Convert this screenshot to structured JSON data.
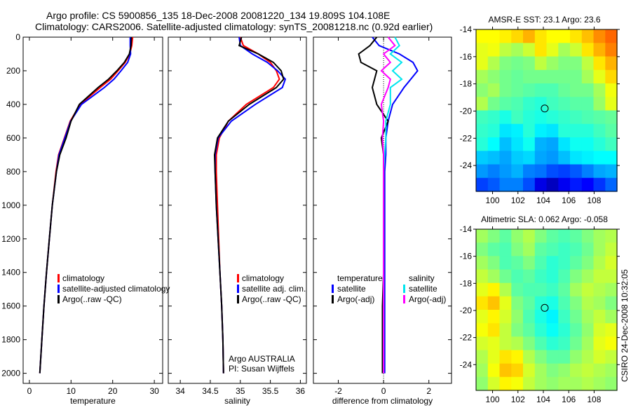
{
  "title_line1": "Argo profile: CS 5900856_135 18-Dec-2008 20081220_134 19.809S 104.108E",
  "title_line2": "Climatology: CARS2006. Satellite-adjusted climatology: synTS_20081218.nc (0.92d earlier)",
  "side_label": "CSIRO 24-Dec-2008 10:32:05",
  "colors": {
    "climatology": "#ff0000",
    "satellite": "#0000ff",
    "argo": "#000000",
    "sal_satellite": "#00e5ee",
    "sal_argo": "#ff00ff"
  },
  "chart_data": [
    {
      "type": "line",
      "name": "temperature",
      "xlabel": "temperature",
      "ylabel": "",
      "xlim": [
        -1.5,
        32
      ],
      "ylim": [
        2060,
        0
      ],
      "xticks": [
        0,
        10,
        20,
        30
      ],
      "yticks": [
        0,
        200,
        400,
        600,
        800,
        1000,
        1200,
        1400,
        1600,
        1800,
        2000
      ],
      "depth": [
        0,
        50,
        100,
        150,
        200,
        250,
        300,
        400,
        500,
        600,
        700,
        800,
        1000,
        1200,
        1400,
        1600,
        1800,
        2000
      ],
      "series": [
        {
          "name": "climatology",
          "color": "#ff0000",
          "values": [
            24.8,
            24.6,
            24.1,
            23.0,
            21.3,
            19.5,
            17.0,
            12.2,
            9.8,
            8.4,
            7.0,
            6.4,
            5.5,
            4.8,
            4.1,
            3.5,
            3.0,
            2.5
          ]
        },
        {
          "name": "satellite-adjusted climatology",
          "color": "#0000ff",
          "values": [
            24.2,
            24.2,
            24.3,
            23.6,
            22.0,
            20.3,
            18.0,
            12.5,
            9.9,
            8.5,
            7.1,
            6.5,
            5.5,
            4.8,
            4.1,
            3.5,
            3.0,
            2.5
          ]
        },
        {
          "name": "Argo(..raw -QC)",
          "color": "#000000",
          "values": [
            24.5,
            24.4,
            24.0,
            22.8,
            21.0,
            19.0,
            16.5,
            12.0,
            10.0,
            8.8,
            7.3,
            6.5,
            5.5,
            4.8,
            4.1,
            3.5,
            3.0,
            2.5
          ]
        }
      ],
      "legend": [
        "climatology",
        "satellite-adjusted climatology",
        "Argo(..raw -QC)"
      ]
    },
    {
      "type": "line",
      "name": "salinity",
      "xlabel": "salinity",
      "xlim": [
        33.8,
        36.1
      ],
      "ylim": [
        2060,
        0
      ],
      "xticks": [
        34,
        34.5,
        35,
        35.5,
        36
      ],
      "depth": [
        0,
        50,
        100,
        150,
        200,
        250,
        300,
        400,
        500,
        600,
        700,
        800,
        1000,
        1200,
        1400,
        1600,
        1800,
        2000
      ],
      "series": [
        {
          "name": "climatology",
          "color": "#ff0000",
          "values": [
            35.0,
            35.05,
            35.3,
            35.5,
            35.6,
            35.65,
            35.55,
            35.1,
            34.8,
            34.65,
            34.6,
            34.6,
            34.62,
            34.64,
            34.66,
            34.69,
            34.71,
            34.72
          ]
        },
        {
          "name": "satellite adj. clim.",
          "color": "#0000ff",
          "values": [
            34.98,
            35.0,
            35.2,
            35.45,
            35.62,
            35.75,
            35.7,
            35.25,
            34.85,
            34.63,
            34.58,
            34.58,
            34.6,
            34.63,
            34.66,
            34.69,
            34.71,
            34.72
          ]
        },
        {
          "name": "Argo(..raw -QC)",
          "color": "#000000",
          "values": [
            35.02,
            34.98,
            35.3,
            35.55,
            35.68,
            35.72,
            35.6,
            35.15,
            34.8,
            34.62,
            34.57,
            34.58,
            34.6,
            34.63,
            34.66,
            34.69,
            34.71,
            34.72
          ]
        }
      ],
      "legend": [
        "climatology",
        "satellite adj. clim.",
        "Argo(..raw -QC)"
      ],
      "annotation": [
        "Argo AUSTRALIA",
        "PI: Susan Wijffels"
      ]
    },
    {
      "type": "line",
      "name": "difference",
      "xlabel": "difference from climatology",
      "xlim": [
        -3.1,
        3
      ],
      "ylim": [
        2060,
        0
      ],
      "xticks": [
        -2,
        0,
        2
      ],
      "depth": [
        0,
        50,
        100,
        150,
        200,
        250,
        300,
        400,
        500,
        600,
        700,
        800,
        1000,
        1200,
        1400,
        1600,
        1800,
        2000
      ],
      "series": [
        {
          "name": "temperature satellite",
          "color": "#0000ff",
          "values": [
            -0.5,
            -0.2,
            0.7,
            1.3,
            1.5,
            1.2,
            0.9,
            0.4,
            0.2,
            0.1,
            0.1,
            0.05,
            0.05,
            0.05,
            0.05,
            0.05,
            0.05,
            0.05
          ]
        },
        {
          "name": "temperature Argo(-adj)",
          "color": "#000000",
          "values": [
            -0.3,
            -0.6,
            -1.1,
            -1.0,
            -0.3,
            -0.4,
            -0.5,
            -0.3,
            0.2,
            -0.1,
            0.0,
            0.0,
            0.0,
            0.0,
            0.0,
            -0.05,
            -0.05,
            -0.05
          ]
        },
        {
          "name": "salinity satellite",
          "color": "#00e5ee",
          "values": [
            0.5,
            0.7,
            0.3,
            0.8,
            0.4,
            0.8,
            0.3,
            0.3,
            0.1,
            0.1,
            0.05,
            0.0,
            0.0,
            0.0,
            0.0,
            0.0,
            0.0,
            0.0
          ]
        },
        {
          "name": "salinity Argo(-adj)",
          "color": "#ff00ff",
          "values": [
            0.2,
            0.5,
            0.0,
            0.3,
            -0.1,
            0.3,
            0.2,
            -0.1,
            0.0,
            -0.05,
            0,
            0,
            0,
            0,
            0,
            0,
            0,
            0
          ]
        }
      ],
      "legend_headers": [
        "temperature",
        "salinity"
      ],
      "legend": [
        "satellite",
        "Argo(-adj)",
        "satellite",
        "Argo(-adj)"
      ]
    },
    {
      "type": "heatmap",
      "name": "sst-map",
      "title": "AMSR-E SST: 23.1 Argo: 23.6",
      "xticks": [
        100,
        102,
        104,
        106,
        108
      ],
      "yticks": [
        -14,
        -16,
        -18,
        -20,
        -22,
        -24
      ],
      "lon_range": [
        98.7,
        109.8
      ],
      "lat_range": [
        -14,
        -25.9
      ],
      "crange": [
        19,
        27
      ],
      "marker": [
        104.108,
        -19.809
      ],
      "grid": [
        [
          24.0,
          24.0,
          24.1,
          24.3,
          24.6,
          24.2,
          24.0,
          24.0,
          24.2,
          24.5,
          24.9,
          25.2
        ],
        [
          23.8,
          23.9,
          23.5,
          23.3,
          23.6,
          24.2,
          23.8,
          23.3,
          23.6,
          24.2,
          24.6,
          25.0
        ],
        [
          23.8,
          23.4,
          23.0,
          22.9,
          23.0,
          23.5,
          23.2,
          23.0,
          23.0,
          23.5,
          24.2,
          24.6
        ],
        [
          23.3,
          23.1,
          22.9,
          22.8,
          22.9,
          22.9,
          22.9,
          22.9,
          22.9,
          23.3,
          23.8,
          24.3
        ],
        [
          23.1,
          23.3,
          22.9,
          22.8,
          22.7,
          22.6,
          22.6,
          22.8,
          22.9,
          22.9,
          23.3,
          23.9
        ],
        [
          23.4,
          22.9,
          22.7,
          22.6,
          22.4,
          22.3,
          22.5,
          22.6,
          22.7,
          22.7,
          23.2,
          23.8
        ],
        [
          22.5,
          22.4,
          22.2,
          22.5,
          22.3,
          22.2,
          22.3,
          22.4,
          22.5,
          22.6,
          22.7,
          22.8
        ],
        [
          22.4,
          22.3,
          21.8,
          21.9,
          22.3,
          21.9,
          21.8,
          22.3,
          22.3,
          22.3,
          22.5,
          22.7
        ],
        [
          22.3,
          22.0,
          21.5,
          21.8,
          22.1,
          21.4,
          21.3,
          21.8,
          22.1,
          22.1,
          22.3,
          22.5
        ],
        [
          21.6,
          21.5,
          21.3,
          21.6,
          21.7,
          21.3,
          21.2,
          21.5,
          21.8,
          21.9,
          22.0,
          22.0
        ],
        [
          21.2,
          21.0,
          21.2,
          21.4,
          21.0,
          20.9,
          20.6,
          20.5,
          20.7,
          21.0,
          21.3,
          21.4
        ],
        [
          20.5,
          20.7,
          21.0,
          21.0,
          20.6,
          19.8,
          19.5,
          19.9,
          20.2,
          20.0,
          20.4,
          20.8
        ]
      ]
    },
    {
      "type": "heatmap",
      "name": "sla-map",
      "title": "Altimetric SLA: 0.062 Argo: -0.058",
      "xticks": [
        100,
        102,
        104,
        106,
        108
      ],
      "yticks": [
        -14,
        -16,
        -18,
        -20,
        -22,
        -24
      ],
      "lon_range": [
        98.7,
        109.8
      ],
      "lat_range": [
        -14,
        -25.9
      ],
      "crange": [
        -0.3,
        0.3
      ],
      "marker": [
        104.108,
        -19.809
      ],
      "grid": [
        [
          0.02,
          0.0,
          -0.02,
          0.01,
          0.03,
          0.0,
          -0.02,
          -0.03,
          -0.02,
          0.0,
          0.02,
          0.03
        ],
        [
          0.0,
          -0.02,
          -0.03,
          0.0,
          0.02,
          -0.02,
          -0.03,
          -0.04,
          -0.03,
          -0.01,
          0.02,
          0.04
        ],
        [
          0.02,
          0.0,
          -0.03,
          -0.02,
          0.0,
          -0.03,
          -0.05,
          -0.04,
          -0.02,
          0.0,
          0.03,
          0.05
        ],
        [
          0.04,
          0.02,
          -0.01,
          -0.03,
          -0.02,
          -0.04,
          -0.05,
          -0.03,
          0.0,
          0.02,
          0.04,
          0.04
        ],
        [
          0.06,
          0.08,
          0.03,
          -0.02,
          -0.03,
          -0.03,
          -0.04,
          -0.02,
          0.02,
          0.04,
          0.03,
          0.02
        ],
        [
          0.09,
          0.11,
          0.06,
          0.0,
          -0.02,
          -0.05,
          -0.06,
          -0.03,
          0.0,
          0.03,
          0.02,
          0.0
        ],
        [
          0.06,
          0.08,
          0.05,
          0.01,
          -0.03,
          -0.06,
          -0.08,
          -0.04,
          -0.01,
          0.02,
          0.04,
          0.02
        ],
        [
          0.07,
          0.09,
          0.04,
          0.0,
          -0.02,
          -0.05,
          -0.07,
          -0.05,
          -0.02,
          0.01,
          0.05,
          0.06
        ],
        [
          0.05,
          0.06,
          0.04,
          0.03,
          0.0,
          -0.03,
          -0.05,
          -0.04,
          -0.01,
          0.02,
          0.06,
          0.07
        ],
        [
          0.03,
          0.06,
          0.09,
          0.08,
          0.03,
          0.0,
          -0.02,
          -0.02,
          0.01,
          0.03,
          0.05,
          0.04
        ],
        [
          0.02,
          0.07,
          0.11,
          0.1,
          0.05,
          0.02,
          0.0,
          0.01,
          0.03,
          0.04,
          0.03,
          0.02
        ],
        [
          0.01,
          0.05,
          0.08,
          0.07,
          0.04,
          0.02,
          0.01,
          0.02,
          0.02,
          0.03,
          0.02,
          0.01
        ]
      ]
    }
  ]
}
